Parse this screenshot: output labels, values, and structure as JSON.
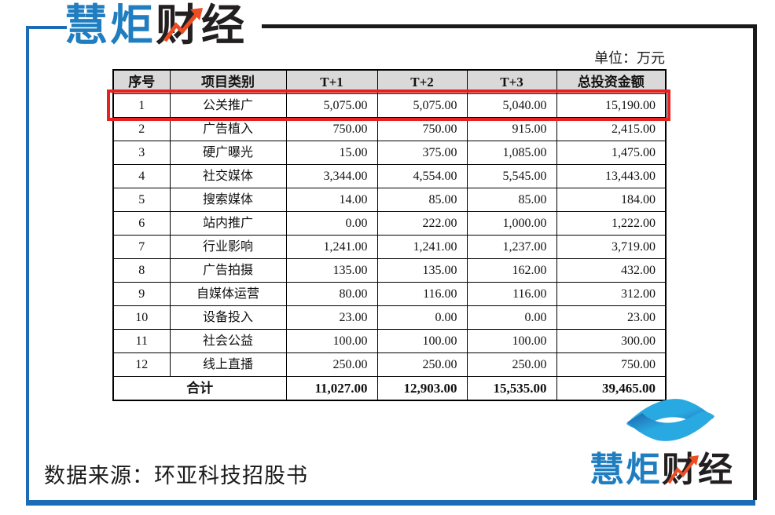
{
  "brand": {
    "name": "慧炬财经",
    "name_primary": "慧炬",
    "name_secondary": "财经"
  },
  "colors": {
    "brand_blue": "#1f7dc0",
    "frame_blue": "#1a6cb4",
    "mark_dark_blue": "#1d5fa9",
    "mark_light_blue": "#29a9e1",
    "arrow_orange": "#ee4d23",
    "highlight_red": "#e8201e",
    "header_gray": "#d9d9d9"
  },
  "unit_label": "单位：万元",
  "source_note": "数据来源：环亚科技招股书",
  "chart_data": {
    "type": "table",
    "unit": "万元",
    "columns": [
      "序号",
      "项目类别",
      "T+1",
      "T+2",
      "T+3",
      "总投资金额"
    ],
    "rows": [
      [
        "1",
        "公关推广",
        "5,075.00",
        "5,075.00",
        "5,040.00",
        "15,190.00"
      ],
      [
        "2",
        "广告植入",
        "750.00",
        "750.00",
        "915.00",
        "2,415.00"
      ],
      [
        "3",
        "硬广曝光",
        "15.00",
        "375.00",
        "1,085.00",
        "1,475.00"
      ],
      [
        "4",
        "社交媒体",
        "3,344.00",
        "4,554.00",
        "5,545.00",
        "13,443.00"
      ],
      [
        "5",
        "搜索媒体",
        "14.00",
        "85.00",
        "85.00",
        "184.00"
      ],
      [
        "6",
        "站内推广",
        "0.00",
        "222.00",
        "1,000.00",
        "1,222.00"
      ],
      [
        "7",
        "行业影响",
        "1,241.00",
        "1,241.00",
        "1,237.00",
        "3,719.00"
      ],
      [
        "8",
        "广告拍摄",
        "135.00",
        "135.00",
        "162.00",
        "432.00"
      ],
      [
        "9",
        "自媒体运营",
        "80.00",
        "116.00",
        "116.00",
        "312.00"
      ],
      [
        "10",
        "设备投入",
        "23.00",
        "0.00",
        "0.00",
        "23.00"
      ],
      [
        "11",
        "社会公益",
        "100.00",
        "100.00",
        "100.00",
        "300.00"
      ],
      [
        "12",
        "线上直播",
        "250.00",
        "250.00",
        "250.00",
        "750.00"
      ]
    ],
    "total_row": {
      "label": "合计",
      "values": [
        "11,027.00",
        "12,903.00",
        "15,535.00",
        "39,465.00"
      ]
    },
    "highlighted_row_index": 0,
    "legend_position": "none",
    "grid": true
  }
}
